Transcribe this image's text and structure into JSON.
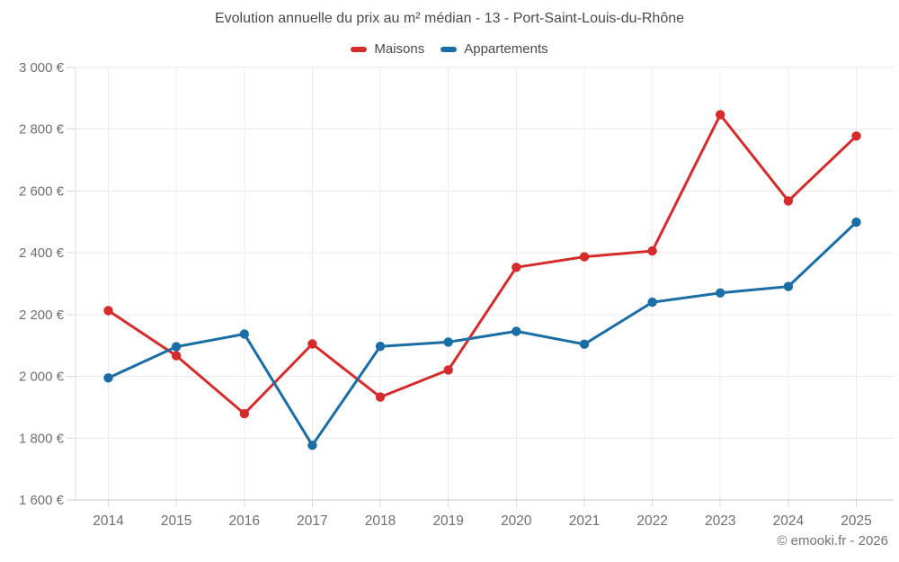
{
  "header": {
    "title": "Evolution annuelle du prix au m² médian - 13 - Port-Saint-Louis-du-Rhône"
  },
  "legend": {
    "items": [
      {
        "label": "Maisons",
        "color": "#d62b2b"
      },
      {
        "label": "Appartements",
        "color": "#1a6da5"
      }
    ]
  },
  "watermark": "© emooki.fr - 2026",
  "chart_data": {
    "type": "line",
    "title": "Evolution annuelle du prix au m² médian - 13 - Port-Saint-Louis-du-Rhône",
    "categories": [
      "2014",
      "2015",
      "2016",
      "2017",
      "2018",
      "2019",
      "2020",
      "2021",
      "2022",
      "2023",
      "2024",
      "2025"
    ],
    "series": [
      {
        "name": "Maisons",
        "color": "#d62b2b",
        "values": [
          2213,
          2067,
          1879,
          2105,
          1933,
          2021,
          2353,
          2387,
          2406,
          2847,
          2568,
          2778
        ]
      },
      {
        "name": "Appartements",
        "color": "#1a6da5",
        "values": [
          1995,
          2096,
          2137,
          1777,
          2097,
          2111,
          2146,
          2104,
          2240,
          2270,
          2291,
          2499
        ]
      }
    ],
    "xlabel": "",
    "ylabel": "",
    "ylim": [
      1600,
      3000
    ],
    "ytick_step": 200,
    "ytick_labels": [
      "1 600 €",
      "1 800 €",
      "2 000 €",
      "2 200 €",
      "2 400 €",
      "2 600 €",
      "2 800 €",
      "3 000 €"
    ],
    "grid": true,
    "legend_position": "top",
    "marker": "circle",
    "currency": "€"
  }
}
